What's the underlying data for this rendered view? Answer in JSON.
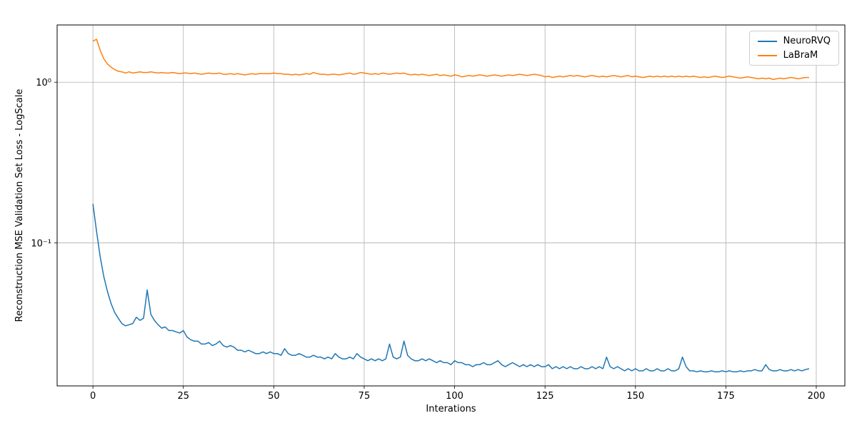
{
  "chart_data": {
    "type": "line",
    "title": "",
    "xlabel": "Interations",
    "ylabel": "Reconstruction MSE Validation Set Loss - LogScale",
    "x_scale": "linear",
    "y_scale": "log",
    "grid": true,
    "legend_position": "upper right",
    "xlim": [
      -9.9,
      207.9
    ],
    "ylim": [
      0.0129,
      2.27
    ],
    "x_ticks": [
      0,
      25,
      50,
      75,
      100,
      125,
      150,
      175,
      200
    ],
    "y_ticks": [
      {
        "value": 1,
        "label": "10⁰"
      },
      {
        "value": 0.1,
        "label": "10⁻¹"
      }
    ],
    "x_start": 0,
    "x_step": 1,
    "series": [
      {
        "name": "NeuroRVQ",
        "color": "#1f77b4",
        "values": [
          0.175,
          0.118,
          0.082,
          0.062,
          0.05,
          0.042,
          0.037,
          0.034,
          0.0315,
          0.0305,
          0.031,
          0.0315,
          0.0345,
          0.033,
          0.034,
          0.051,
          0.036,
          0.033,
          0.031,
          0.0295,
          0.03,
          0.0285,
          0.0285,
          0.028,
          0.0275,
          0.0285,
          0.026,
          0.025,
          0.0245,
          0.0245,
          0.0235,
          0.0235,
          0.024,
          0.023,
          0.0235,
          0.0245,
          0.023,
          0.0225,
          0.023,
          0.0225,
          0.0215,
          0.0215,
          0.021,
          0.0215,
          0.021,
          0.0205,
          0.0205,
          0.021,
          0.0205,
          0.021,
          0.0205,
          0.0205,
          0.02,
          0.022,
          0.0205,
          0.02,
          0.02,
          0.0205,
          0.02,
          0.0195,
          0.0195,
          0.02,
          0.0195,
          0.0195,
          0.019,
          0.0195,
          0.019,
          0.0205,
          0.0195,
          0.019,
          0.019,
          0.0195,
          0.019,
          0.0205,
          0.0195,
          0.019,
          0.0185,
          0.019,
          0.0185,
          0.019,
          0.0185,
          0.019,
          0.0235,
          0.0195,
          0.019,
          0.0195,
          0.0245,
          0.02,
          0.019,
          0.0185,
          0.0185,
          0.019,
          0.0185,
          0.019,
          0.0185,
          0.018,
          0.0185,
          0.018,
          0.018,
          0.0175,
          0.0185,
          0.018,
          0.018,
          0.0175,
          0.0175,
          0.017,
          0.0175,
          0.0175,
          0.018,
          0.0175,
          0.0175,
          0.018,
          0.0185,
          0.0175,
          0.017,
          0.0175,
          0.018,
          0.0175,
          0.017,
          0.0175,
          0.017,
          0.0175,
          0.017,
          0.0175,
          0.017,
          0.017,
          0.0175,
          0.0165,
          0.017,
          0.0165,
          0.017,
          0.0165,
          0.017,
          0.0165,
          0.0165,
          0.017,
          0.0165,
          0.0165,
          0.017,
          0.0165,
          0.017,
          0.0165,
          0.0195,
          0.017,
          0.0165,
          0.017,
          0.0165,
          0.016,
          0.0165,
          0.016,
          0.0165,
          0.016,
          0.016,
          0.0165,
          0.016,
          0.016,
          0.0165,
          0.016,
          0.016,
          0.0165,
          0.016,
          0.016,
          0.0165,
          0.0195,
          0.017,
          0.016,
          0.016,
          0.0158,
          0.016,
          0.0158,
          0.0158,
          0.016,
          0.0158,
          0.0158,
          0.016,
          0.0158,
          0.016,
          0.0158,
          0.0158,
          0.016,
          0.0158,
          0.016,
          0.016,
          0.0163,
          0.016,
          0.016,
          0.0175,
          0.0163,
          0.016,
          0.016,
          0.0163,
          0.016,
          0.016,
          0.0163,
          0.016,
          0.0163,
          0.016,
          0.0163,
          0.0165
        ]
      },
      {
        "name": "LaBraM",
        "color": "#ff7f0e",
        "values": [
          1.8,
          1.85,
          1.58,
          1.4,
          1.3,
          1.24,
          1.2,
          1.17,
          1.16,
          1.14,
          1.16,
          1.14,
          1.15,
          1.16,
          1.15,
          1.15,
          1.16,
          1.15,
          1.14,
          1.15,
          1.14,
          1.14,
          1.15,
          1.14,
          1.13,
          1.14,
          1.14,
          1.13,
          1.14,
          1.13,
          1.12,
          1.13,
          1.14,
          1.13,
          1.13,
          1.14,
          1.12,
          1.12,
          1.13,
          1.12,
          1.13,
          1.12,
          1.11,
          1.12,
          1.13,
          1.12,
          1.13,
          1.13,
          1.13,
          1.13,
          1.14,
          1.13,
          1.13,
          1.12,
          1.12,
          1.11,
          1.12,
          1.11,
          1.12,
          1.13,
          1.12,
          1.15,
          1.13,
          1.12,
          1.12,
          1.11,
          1.12,
          1.12,
          1.11,
          1.12,
          1.13,
          1.14,
          1.12,
          1.13,
          1.15,
          1.14,
          1.13,
          1.12,
          1.13,
          1.12,
          1.14,
          1.13,
          1.12,
          1.13,
          1.14,
          1.13,
          1.14,
          1.12,
          1.11,
          1.12,
          1.11,
          1.12,
          1.11,
          1.1,
          1.11,
          1.12,
          1.1,
          1.11,
          1.1,
          1.09,
          1.11,
          1.1,
          1.08,
          1.09,
          1.1,
          1.09,
          1.1,
          1.11,
          1.1,
          1.09,
          1.1,
          1.11,
          1.1,
          1.09,
          1.1,
          1.11,
          1.1,
          1.11,
          1.12,
          1.11,
          1.1,
          1.11,
          1.12,
          1.11,
          1.1,
          1.08,
          1.09,
          1.07,
          1.08,
          1.09,
          1.08,
          1.09,
          1.1,
          1.09,
          1.1,
          1.09,
          1.08,
          1.09,
          1.1,
          1.09,
          1.08,
          1.09,
          1.08,
          1.09,
          1.1,
          1.09,
          1.08,
          1.09,
          1.1,
          1.08,
          1.09,
          1.08,
          1.07,
          1.08,
          1.09,
          1.08,
          1.09,
          1.08,
          1.09,
          1.08,
          1.09,
          1.08,
          1.09,
          1.08,
          1.09,
          1.08,
          1.09,
          1.08,
          1.07,
          1.08,
          1.07,
          1.08,
          1.09,
          1.08,
          1.07,
          1.08,
          1.09,
          1.08,
          1.07,
          1.06,
          1.07,
          1.08,
          1.07,
          1.06,
          1.05,
          1.06,
          1.05,
          1.06,
          1.04,
          1.05,
          1.06,
          1.05,
          1.06,
          1.07,
          1.06,
          1.05,
          1.06,
          1.07,
          1.07
        ]
      }
    ]
  }
}
